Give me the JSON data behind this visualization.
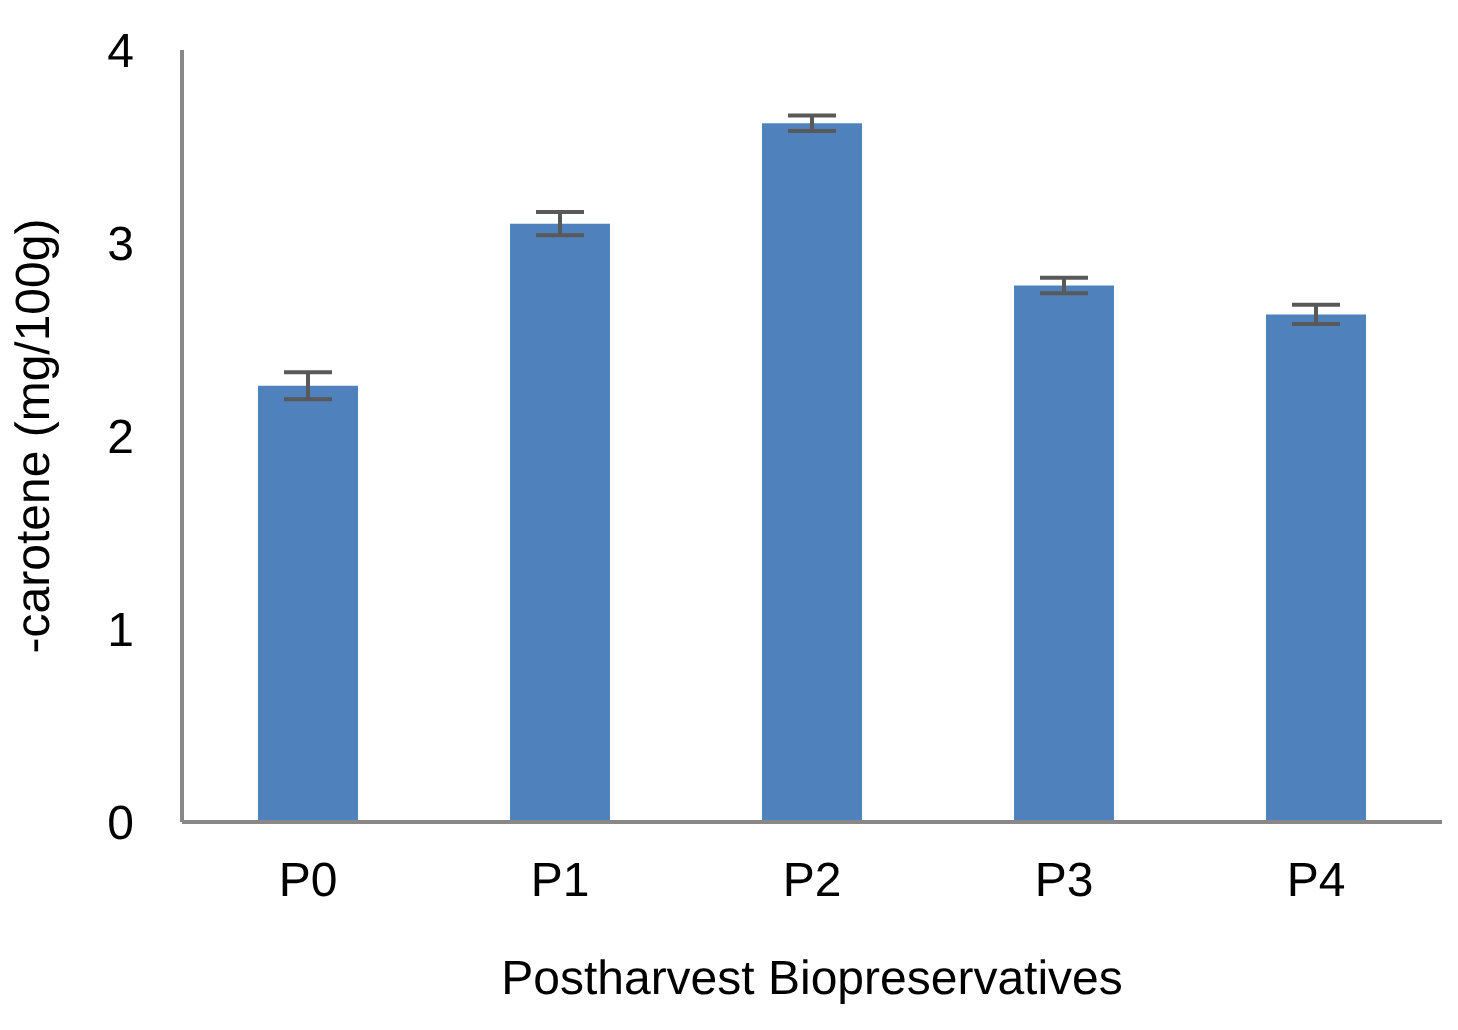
{
  "chart_data": {
    "type": "bar",
    "xlabel": "Postharvest Biopreservatives",
    "ylabel": "-carotene (mg/100g)",
    "categories": [
      "P0",
      "P1",
      "P2",
      "P3",
      "P4"
    ],
    "values": [
      2.26,
      3.1,
      3.62,
      2.78,
      2.63
    ],
    "errors": [
      0.07,
      0.06,
      0.04,
      0.04,
      0.05
    ],
    "color": "#4f81bd",
    "ylim": [
      0,
      4
    ],
    "yticks": [
      0,
      1,
      2,
      3,
      4
    ],
    "grid": false,
    "legend": false
  }
}
